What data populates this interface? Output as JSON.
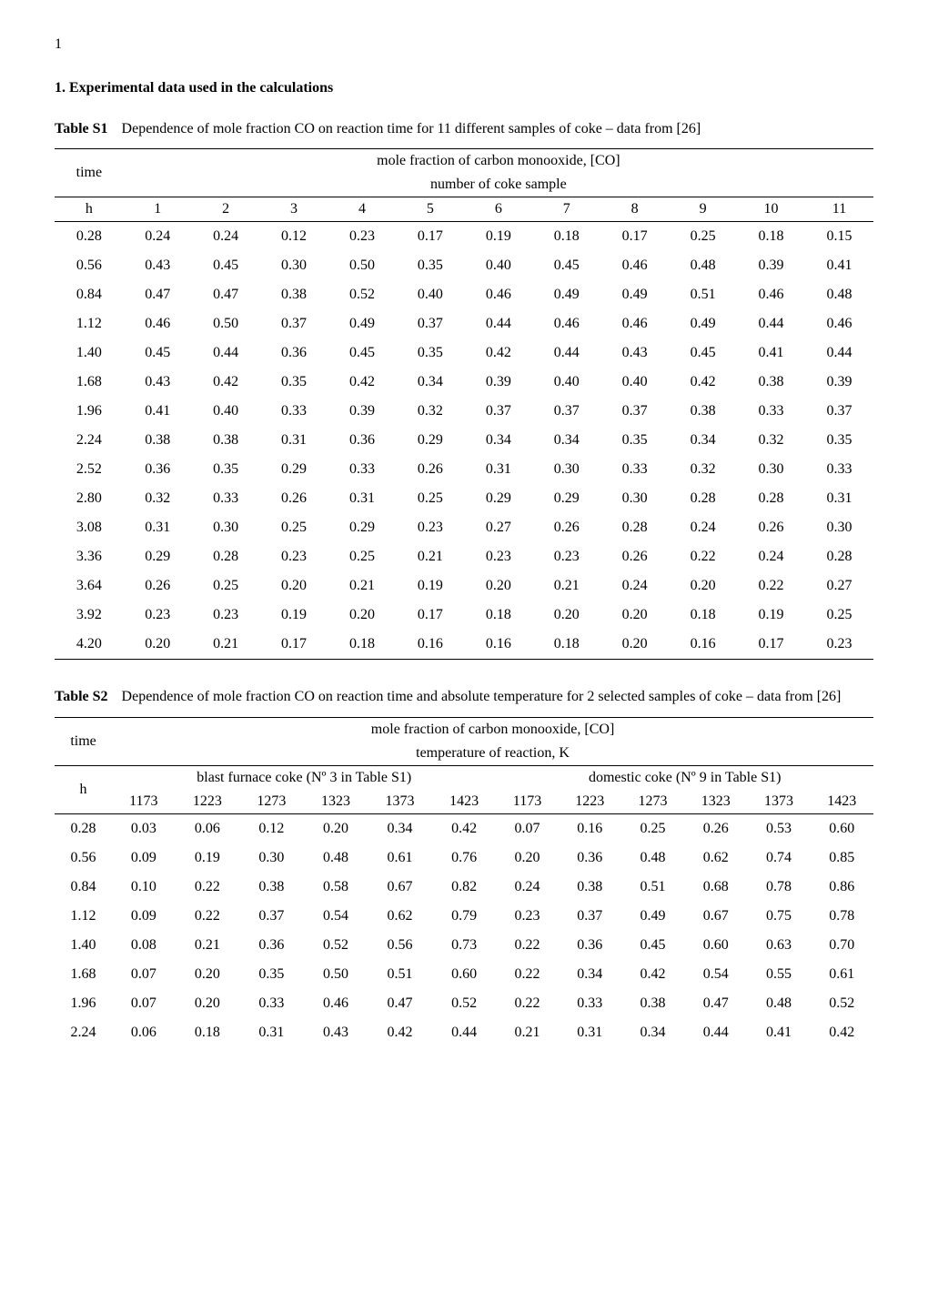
{
  "page_number": "1",
  "section_heading": "1. Experimental data used in the calculations",
  "table1": {
    "label": "Table S1",
    "desc": "Dependence of mole fraction CO on reaction time for 11 different samples of coke – data from [26]",
    "time_col": "time",
    "time_unit": "h",
    "header_span": "mole fraction of carbon monooxide, [CO]",
    "header_sub": "number of coke sample",
    "cols": [
      "1",
      "2",
      "3",
      "4",
      "5",
      "6",
      "7",
      "8",
      "9",
      "10",
      "11"
    ],
    "rows": [
      {
        "t": "0.28",
        "v": [
          "0.24",
          "0.24",
          "0.12",
          "0.23",
          "0.17",
          "0.19",
          "0.18",
          "0.17",
          "0.25",
          "0.18",
          "0.15"
        ]
      },
      {
        "t": "0.56",
        "v": [
          "0.43",
          "0.45",
          "0.30",
          "0.50",
          "0.35",
          "0.40",
          "0.45",
          "0.46",
          "0.48",
          "0.39",
          "0.41"
        ]
      },
      {
        "t": "0.84",
        "v": [
          "0.47",
          "0.47",
          "0.38",
          "0.52",
          "0.40",
          "0.46",
          "0.49",
          "0.49",
          "0.51",
          "0.46",
          "0.48"
        ]
      },
      {
        "t": "1.12",
        "v": [
          "0.46",
          "0.50",
          "0.37",
          "0.49",
          "0.37",
          "0.44",
          "0.46",
          "0.46",
          "0.49",
          "0.44",
          "0.46"
        ]
      },
      {
        "t": "1.40",
        "v": [
          "0.45",
          "0.44",
          "0.36",
          "0.45",
          "0.35",
          "0.42",
          "0.44",
          "0.43",
          "0.45",
          "0.41",
          "0.44"
        ]
      },
      {
        "t": "1.68",
        "v": [
          "0.43",
          "0.42",
          "0.35",
          "0.42",
          "0.34",
          "0.39",
          "0.40",
          "0.40",
          "0.42",
          "0.38",
          "0.39"
        ]
      },
      {
        "t": "1.96",
        "v": [
          "0.41",
          "0.40",
          "0.33",
          "0.39",
          "0.32",
          "0.37",
          "0.37",
          "0.37",
          "0.38",
          "0.33",
          "0.37"
        ]
      },
      {
        "t": "2.24",
        "v": [
          "0.38",
          "0.38",
          "0.31",
          "0.36",
          "0.29",
          "0.34",
          "0.34",
          "0.35",
          "0.34",
          "0.32",
          "0.35"
        ]
      },
      {
        "t": "2.52",
        "v": [
          "0.36",
          "0.35",
          "0.29",
          "0.33",
          "0.26",
          "0.31",
          "0.30",
          "0.33",
          "0.32",
          "0.30",
          "0.33"
        ]
      },
      {
        "t": "2.80",
        "v": [
          "0.32",
          "0.33",
          "0.26",
          "0.31",
          "0.25",
          "0.29",
          "0.29",
          "0.30",
          "0.28",
          "0.28",
          "0.31"
        ]
      },
      {
        "t": "3.08",
        "v": [
          "0.31",
          "0.30",
          "0.25",
          "0.29",
          "0.23",
          "0.27",
          "0.26",
          "0.28",
          "0.24",
          "0.26",
          "0.30"
        ]
      },
      {
        "t": "3.36",
        "v": [
          "0.29",
          "0.28",
          "0.23",
          "0.25",
          "0.21",
          "0.23",
          "0.23",
          "0.26",
          "0.22",
          "0.24",
          "0.28"
        ]
      },
      {
        "t": "3.64",
        "v": [
          "0.26",
          "0.25",
          "0.20",
          "0.21",
          "0.19",
          "0.20",
          "0.21",
          "0.24",
          "0.20",
          "0.22",
          "0.27"
        ]
      },
      {
        "t": "3.92",
        "v": [
          "0.23",
          "0.23",
          "0.19",
          "0.20",
          "0.17",
          "0.18",
          "0.20",
          "0.20",
          "0.18",
          "0.19",
          "0.25"
        ]
      },
      {
        "t": "4.20",
        "v": [
          "0.20",
          "0.21",
          "0.17",
          "0.18",
          "0.16",
          "0.16",
          "0.18",
          "0.20",
          "0.16",
          "0.17",
          "0.23"
        ]
      }
    ]
  },
  "table2": {
    "label": "Table S2",
    "desc": "Dependence of mole fraction CO on reaction time and absolute temperature for 2 selected samples of coke – data from [26]",
    "time_col": "time",
    "time_unit": "h",
    "header_span": "mole fraction of carbon monooxide, [CO]",
    "header_sub": "temperature of reaction, K",
    "group_left": "blast furnace coke (Nº 3 in Table S1)",
    "group_right": "domestic coke (Nº 9 in Table S1)",
    "temps": [
      "1173",
      "1223",
      "1273",
      "1323",
      "1373",
      "1423",
      "1173",
      "1223",
      "1273",
      "1323",
      "1373",
      "1423"
    ],
    "rows": [
      {
        "t": "0.28",
        "v": [
          "0.03",
          "0.06",
          "0.12",
          "0.20",
          "0.34",
          "0.42",
          "0.07",
          "0.16",
          "0.25",
          "0.26",
          "0.53",
          "0.60"
        ]
      },
      {
        "t": "0.56",
        "v": [
          "0.09",
          "0.19",
          "0.30",
          "0.48",
          "0.61",
          "0.76",
          "0.20",
          "0.36",
          "0.48",
          "0.62",
          "0.74",
          "0.85"
        ]
      },
      {
        "t": "0.84",
        "v": [
          "0.10",
          "0.22",
          "0.38",
          "0.58",
          "0.67",
          "0.82",
          "0.24",
          "0.38",
          "0.51",
          "0.68",
          "0.78",
          "0.86"
        ]
      },
      {
        "t": "1.12",
        "v": [
          "0.09",
          "0.22",
          "0.37",
          "0.54",
          "0.62",
          "0.79",
          "0.23",
          "0.37",
          "0.49",
          "0.67",
          "0.75",
          "0.78"
        ]
      },
      {
        "t": "1.40",
        "v": [
          "0.08",
          "0.21",
          "0.36",
          "0.52",
          "0.56",
          "0.73",
          "0.22",
          "0.36",
          "0.45",
          "0.60",
          "0.63",
          "0.70"
        ]
      },
      {
        "t": "1.68",
        "v": [
          "0.07",
          "0.20",
          "0.35",
          "0.50",
          "0.51",
          "0.60",
          "0.22",
          "0.34",
          "0.42",
          "0.54",
          "0.55",
          "0.61"
        ]
      },
      {
        "t": "1.96",
        "v": [
          "0.07",
          "0.20",
          "0.33",
          "0.46",
          "0.47",
          "0.52",
          "0.22",
          "0.33",
          "0.38",
          "0.47",
          "0.48",
          "0.52"
        ]
      },
      {
        "t": "2.24",
        "v": [
          "0.06",
          "0.18",
          "0.31",
          "0.43",
          "0.42",
          "0.44",
          "0.21",
          "0.31",
          "0.34",
          "0.44",
          "0.41",
          "0.42"
        ]
      }
    ]
  }
}
